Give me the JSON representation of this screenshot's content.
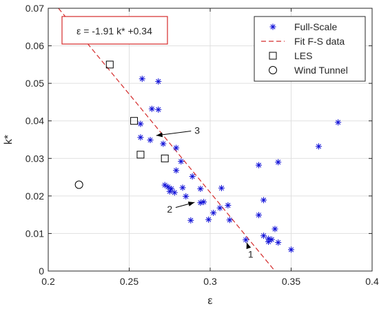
{
  "chart_data": {
    "type": "scatter",
    "title": "",
    "xlabel": "ε",
    "ylabel": "k*",
    "xlim": [
      0.2,
      0.4
    ],
    "ylim": [
      0,
      0.07
    ],
    "xticks": [
      0.2,
      0.25,
      0.3,
      0.35,
      0.4
    ],
    "xtick_labels": [
      "0.2",
      "0.25",
      "0.3",
      "0.35",
      "0.4"
    ],
    "yticks": [
      0,
      0.01,
      0.02,
      0.03,
      0.04,
      0.05,
      0.06,
      0.07
    ],
    "ytick_labels": [
      "0",
      "0.01",
      "0.02",
      "0.03",
      "0.04",
      "0.05",
      "0.06",
      "0.07"
    ],
    "grid": true,
    "legend": {
      "position": "top-right",
      "entries": [
        {
          "label": "Full-Scale",
          "marker": "asterisk",
          "color": "#1515d8"
        },
        {
          "label": "Fit F-S data",
          "marker": "dashed-line",
          "color": "#d42a2a"
        },
        {
          "label": "LES",
          "marker": "square",
          "color": "#000000"
        },
        {
          "label": "Wind Tunnel",
          "marker": "circle",
          "color": "#000000"
        }
      ]
    },
    "series": [
      {
        "name": "Full-Scale",
        "marker": "asterisk",
        "color": "#1515d8",
        "points": [
          [
            0.258,
            0.0512
          ],
          [
            0.268,
            0.0505
          ],
          [
            0.264,
            0.0432
          ],
          [
            0.268,
            0.043
          ],
          [
            0.257,
            0.0392
          ],
          [
            0.379,
            0.0396
          ],
          [
            0.257,
            0.0356
          ],
          [
            0.263,
            0.0349
          ],
          [
            0.271,
            0.0339
          ],
          [
            0.279,
            0.0328
          ],
          [
            0.367,
            0.0332
          ],
          [
            0.342,
            0.029
          ],
          [
            0.282,
            0.0292
          ],
          [
            0.33,
            0.0282
          ],
          [
            0.279,
            0.0268
          ],
          [
            0.289,
            0.0252
          ],
          [
            0.272,
            0.0229
          ],
          [
            0.274,
            0.0224
          ],
          [
            0.276,
            0.0219
          ],
          [
            0.283,
            0.0222
          ],
          [
            0.294,
            0.0219
          ],
          [
            0.307,
            0.0221
          ],
          [
            0.275,
            0.0212
          ],
          [
            0.278,
            0.0209
          ],
          [
            0.285,
            0.0199
          ],
          [
            0.333,
            0.0189
          ],
          [
            0.296,
            0.0184
          ],
          [
            0.294,
            0.0182
          ],
          [
            0.306,
            0.0168
          ],
          [
            0.311,
            0.0175
          ],
          [
            0.302,
            0.0155
          ],
          [
            0.33,
            0.0149
          ],
          [
            0.288,
            0.0135
          ],
          [
            0.299,
            0.0137
          ],
          [
            0.312,
            0.0136
          ],
          [
            0.34,
            0.0112
          ],
          [
            0.333,
            0.0094
          ],
          [
            0.336,
            0.0086
          ],
          [
            0.338,
            0.0084
          ],
          [
            0.336,
            0.0078
          ],
          [
            0.342,
            0.0076
          ],
          [
            0.322,
            0.0083
          ],
          [
            0.35,
            0.0057
          ]
        ]
      },
      {
        "name": "LES",
        "marker": "square",
        "color": "#000000",
        "points": [
          [
            0.238,
            0.055
          ],
          [
            0.253,
            0.04
          ],
          [
            0.257,
            0.031
          ],
          [
            0.272,
            0.03
          ]
        ]
      },
      {
        "name": "Wind Tunnel",
        "marker": "circle",
        "color": "#000000",
        "points": [
          [
            0.219,
            0.023
          ]
        ]
      }
    ],
    "fit": {
      "name": "Fit F-S data",
      "color": "#d42a2a",
      "equation": "ε = -1.91 k* +0.34",
      "k_intercept": 0.34,
      "k_slope": -1.91
    },
    "annotations": [
      {
        "label": "1",
        "text_at": [
          0.325,
          0.0045
        ],
        "arrow_to": [
          0.322,
          0.0083
        ]
      },
      {
        "label": "2",
        "text_at": [
          0.275,
          0.0165
        ],
        "arrow_to": [
          0.292,
          0.0185
        ]
      },
      {
        "label": "3",
        "text_at": [
          0.292,
          0.0375
        ],
        "arrow_to": [
          0.265,
          0.036
        ]
      }
    ]
  }
}
